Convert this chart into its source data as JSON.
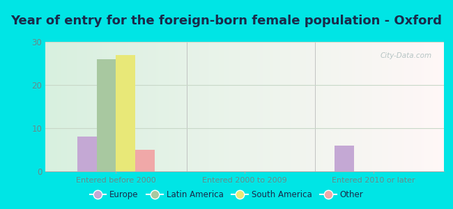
{
  "title": "Year of entry for the foreign-born female population - Oxford",
  "categories": [
    "Entered before 2000",
    "Entered 2000 to 2009",
    "Entered 2010 or later"
  ],
  "series": {
    "Europe": [
      8,
      0,
      6
    ],
    "Latin America": [
      26,
      0,
      0
    ],
    "South America": [
      27,
      0,
      0
    ],
    "Other": [
      5,
      0,
      0
    ]
  },
  "colors": {
    "Europe": "#c4a8d4",
    "Latin America": "#a8c8a0",
    "South America": "#e8e878",
    "Other": "#f0a8a8"
  },
  "ylim": [
    0,
    30
  ],
  "yticks": [
    0,
    10,
    20,
    30
  ],
  "background_color": "#00e5e5",
  "watermark": "City-Data.com",
  "bar_width": 0.15,
  "legend_fontsize": 8.5,
  "title_fontsize": 13,
  "title_color": "#1a2a4a",
  "tick_color": "#6a8a8a",
  "grid_color": "#c8d8c8"
}
